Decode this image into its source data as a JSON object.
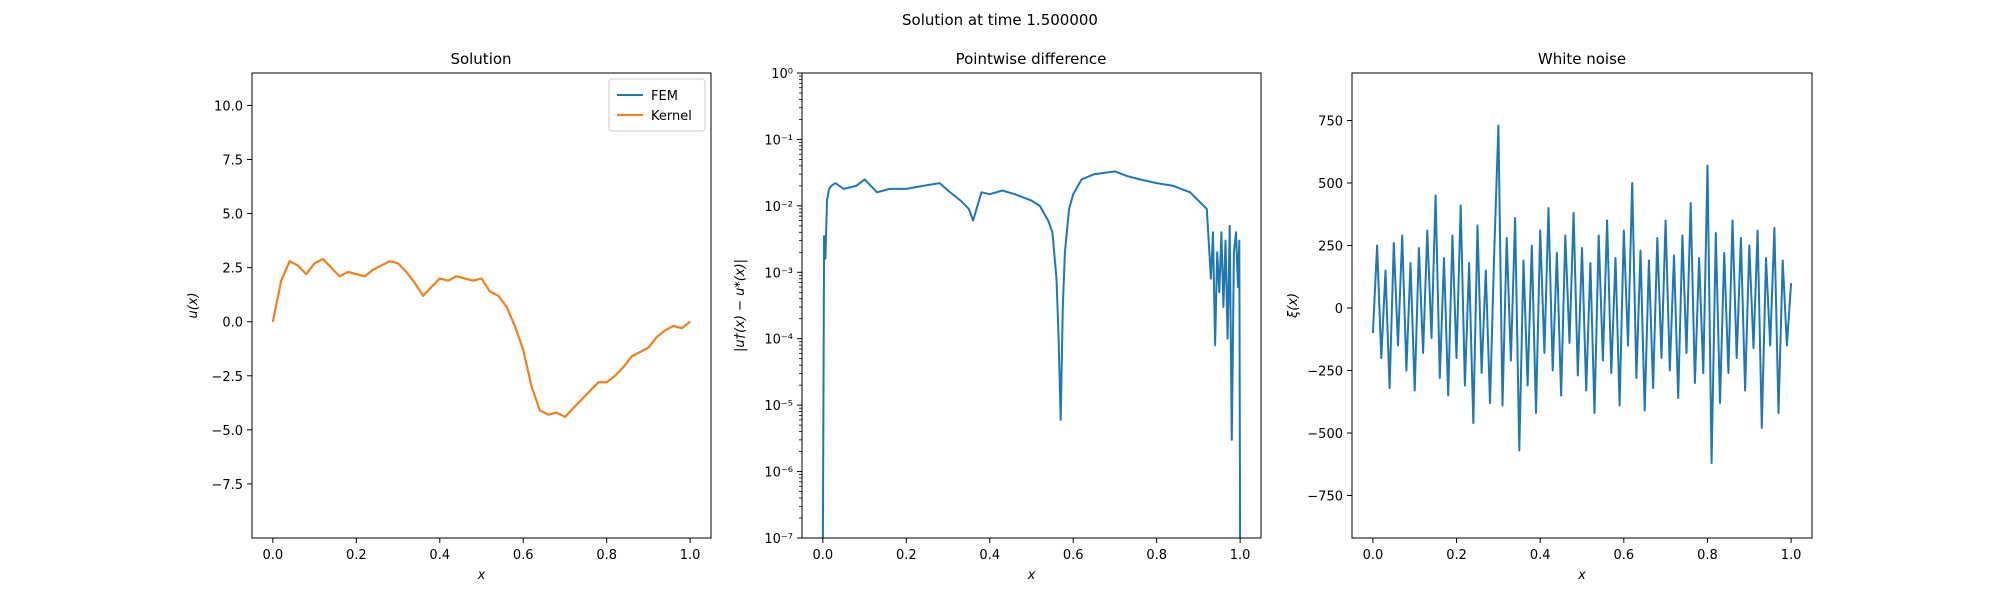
{
  "suptitle": "Solution at time 1.500000",
  "colors": {
    "fem": "#1f77b4",
    "kernel": "#ff7f0e",
    "noise": "#1f77b4",
    "diff": "#1f77b4"
  },
  "chart_data": [
    {
      "type": "line",
      "title": "Solution",
      "xlabel": "x",
      "ylabel": "u(x)",
      "xlim": [
        -0.05,
        1.05
      ],
      "ylim": [
        -10,
        11.5
      ],
      "xticks": [
        "0.0",
        "0.2",
        "0.4",
        "0.6",
        "0.8",
        "1.0"
      ],
      "yticks": [
        "−7.5",
        "−5.0",
        "−2.5",
        "0.0",
        "2.5",
        "5.0",
        "7.5",
        "10.0"
      ],
      "legend": "upper-right",
      "x": [
        0.0,
        0.02,
        0.04,
        0.06,
        0.08,
        0.1,
        0.12,
        0.14,
        0.16,
        0.18,
        0.2,
        0.22,
        0.24,
        0.26,
        0.28,
        0.3,
        0.32,
        0.34,
        0.36,
        0.38,
        0.4,
        0.42,
        0.44,
        0.46,
        0.48,
        0.5,
        0.52,
        0.54,
        0.56,
        0.58,
        0.6,
        0.62,
        0.64,
        0.66,
        0.68,
        0.7,
        0.72,
        0.74,
        0.76,
        0.78,
        0.8,
        0.82,
        0.84,
        0.86,
        0.88,
        0.9,
        0.92,
        0.94,
        0.96,
        0.98,
        1.0
      ],
      "series": [
        {
          "name": "FEM",
          "values": [
            0.0,
            1.9,
            2.8,
            2.6,
            2.2,
            2.7,
            2.9,
            2.5,
            2.1,
            2.3,
            2.2,
            2.1,
            2.4,
            2.6,
            2.8,
            2.7,
            2.3,
            1.8,
            1.2,
            1.6,
            2.0,
            1.9,
            2.1,
            2.0,
            1.9,
            2.0,
            1.4,
            1.2,
            0.7,
            -0.2,
            -1.3,
            -3.0,
            -4.1,
            -4.3,
            -4.2,
            -4.4,
            -4.0,
            -3.6,
            -3.2,
            -2.8,
            -2.8,
            -2.5,
            -2.1,
            -1.6,
            -1.4,
            -1.2,
            -0.7,
            -0.4,
            -0.2,
            -0.3,
            0.0
          ]
        },
        {
          "name": "Kernel",
          "values": [
            0.0,
            1.9,
            2.8,
            2.6,
            2.2,
            2.7,
            2.9,
            2.5,
            2.1,
            2.3,
            2.2,
            2.1,
            2.4,
            2.6,
            2.8,
            2.7,
            2.3,
            1.8,
            1.2,
            1.6,
            2.0,
            1.9,
            2.1,
            2.0,
            1.9,
            2.0,
            1.4,
            1.2,
            0.7,
            -0.2,
            -1.3,
            -3.0,
            -4.1,
            -4.3,
            -4.2,
            -4.4,
            -4.0,
            -3.6,
            -3.2,
            -2.8,
            -2.8,
            -2.5,
            -2.1,
            -1.6,
            -1.4,
            -1.2,
            -0.7,
            -0.4,
            -0.2,
            -0.3,
            0.0
          ]
        }
      ]
    },
    {
      "type": "line",
      "title": "Pointwise difference",
      "xlabel": "x",
      "ylabel": "|u†(x) − u*(x)|",
      "yscale": "log",
      "xlim": [
        -0.05,
        1.05
      ],
      "ylim": [
        1e-07,
        1
      ],
      "xticks": [
        "0.0",
        "0.2",
        "0.4",
        "0.6",
        "0.8",
        "1.0"
      ],
      "yticks": [
        "10⁻⁷",
        "10⁻⁶",
        "10⁻⁵",
        "10⁻⁴",
        "10⁻³",
        "10⁻²",
        "10⁻¹",
        "10⁰"
      ],
      "x": [
        0.0,
        0.003,
        0.006,
        0.01,
        0.015,
        0.02,
        0.03,
        0.05,
        0.08,
        0.1,
        0.13,
        0.16,
        0.2,
        0.24,
        0.28,
        0.3,
        0.33,
        0.35,
        0.36,
        0.38,
        0.4,
        0.43,
        0.46,
        0.5,
        0.52,
        0.54,
        0.55,
        0.56,
        0.565,
        0.57,
        0.575,
        0.58,
        0.59,
        0.6,
        0.62,
        0.65,
        0.7,
        0.73,
        0.76,
        0.8,
        0.84,
        0.88,
        0.9,
        0.92,
        0.93,
        0.935,
        0.94,
        0.945,
        0.95,
        0.955,
        0.96,
        0.965,
        0.97,
        0.975,
        0.98,
        0.985,
        0.99,
        0.995,
        0.998,
        1.0
      ],
      "series": [
        {
          "name": "",
          "values": [
            1e-07,
            0.0035,
            0.0016,
            0.012,
            0.018,
            0.02,
            0.022,
            0.018,
            0.02,
            0.025,
            0.016,
            0.018,
            0.018,
            0.02,
            0.022,
            0.017,
            0.012,
            0.009,
            0.006,
            0.016,
            0.015,
            0.017,
            0.015,
            0.012,
            0.01,
            0.006,
            0.004,
            0.0008,
            0.0001,
            6e-06,
            0.0003,
            0.002,
            0.009,
            0.015,
            0.025,
            0.03,
            0.033,
            0.028,
            0.025,
            0.022,
            0.02,
            0.016,
            0.012,
            0.009,
            0.0008,
            0.004,
            8e-05,
            0.002,
            0.0005,
            0.004,
            0.0003,
            0.003,
            0.0001,
            0.005,
            3e-06,
            0.002,
            0.004,
            0.0006,
            0.003,
            1e-07
          ]
        }
      ]
    },
    {
      "type": "line",
      "title": "White noise",
      "xlabel": "x",
      "ylabel": "ξ(x)",
      "xlim": [
        -0.05,
        1.05
      ],
      "ylim": [
        -920,
        940
      ],
      "xticks": [
        "0.0",
        "0.2",
        "0.4",
        "0.6",
        "0.8",
        "1.0"
      ],
      "yticks": [
        "−750",
        "−500",
        "−250",
        "0",
        "250",
        "500",
        "750"
      ],
      "x": [
        0.0,
        0.01,
        0.02,
        0.03,
        0.04,
        0.05,
        0.06,
        0.07,
        0.08,
        0.09,
        0.1,
        0.11,
        0.12,
        0.13,
        0.14,
        0.15,
        0.16,
        0.17,
        0.18,
        0.19,
        0.2,
        0.21,
        0.22,
        0.23,
        0.24,
        0.25,
        0.26,
        0.27,
        0.28,
        0.29,
        0.3,
        0.31,
        0.32,
        0.33,
        0.34,
        0.35,
        0.36,
        0.37,
        0.38,
        0.39,
        0.4,
        0.41,
        0.42,
        0.43,
        0.44,
        0.45,
        0.46,
        0.47,
        0.48,
        0.49,
        0.5,
        0.51,
        0.52,
        0.53,
        0.54,
        0.55,
        0.56,
        0.57,
        0.58,
        0.59,
        0.6,
        0.61,
        0.62,
        0.63,
        0.64,
        0.65,
        0.66,
        0.67,
        0.68,
        0.69,
        0.7,
        0.71,
        0.72,
        0.73,
        0.74,
        0.75,
        0.76,
        0.77,
        0.78,
        0.79,
        0.8,
        0.81,
        0.82,
        0.83,
        0.84,
        0.85,
        0.86,
        0.87,
        0.88,
        0.89,
        0.9,
        0.91,
        0.92,
        0.93,
        0.94,
        0.95,
        0.96,
        0.97,
        0.98,
        0.99,
        1.0
      ],
      "series": [
        {
          "name": "",
          "values": [
            -100,
            250,
            -200,
            150,
            -320,
            260,
            -150,
            290,
            -250,
            180,
            -330,
            240,
            -180,
            310,
            -120,
            450,
            -280,
            200,
            -350,
            290,
            -200,
            410,
            -310,
            180,
            -460,
            330,
            -260,
            150,
            -380,
            220,
            730,
            -390,
            280,
            -210,
            360,
            -570,
            190,
            -310,
            250,
            -420,
            310,
            -180,
            400,
            -250,
            220,
            -350,
            290,
            -140,
            380,
            -270,
            240,
            -330,
            180,
            -420,
            290,
            -210,
            350,
            -260,
            200,
            -390,
            310,
            -150,
            500,
            -280,
            230,
            -410,
            190,
            -320,
            280,
            -200,
            350,
            -250,
            210,
            -360,
            290,
            -180,
            420,
            -300,
            200,
            -260,
            570,
            -620,
            300,
            -380,
            220,
            -260,
            350,
            -200,
            280,
            -330,
            250,
            -160,
            310,
            -480,
            200,
            -150,
            320,
            -420,
            190,
            -150,
            100
          ]
        }
      ]
    }
  ]
}
